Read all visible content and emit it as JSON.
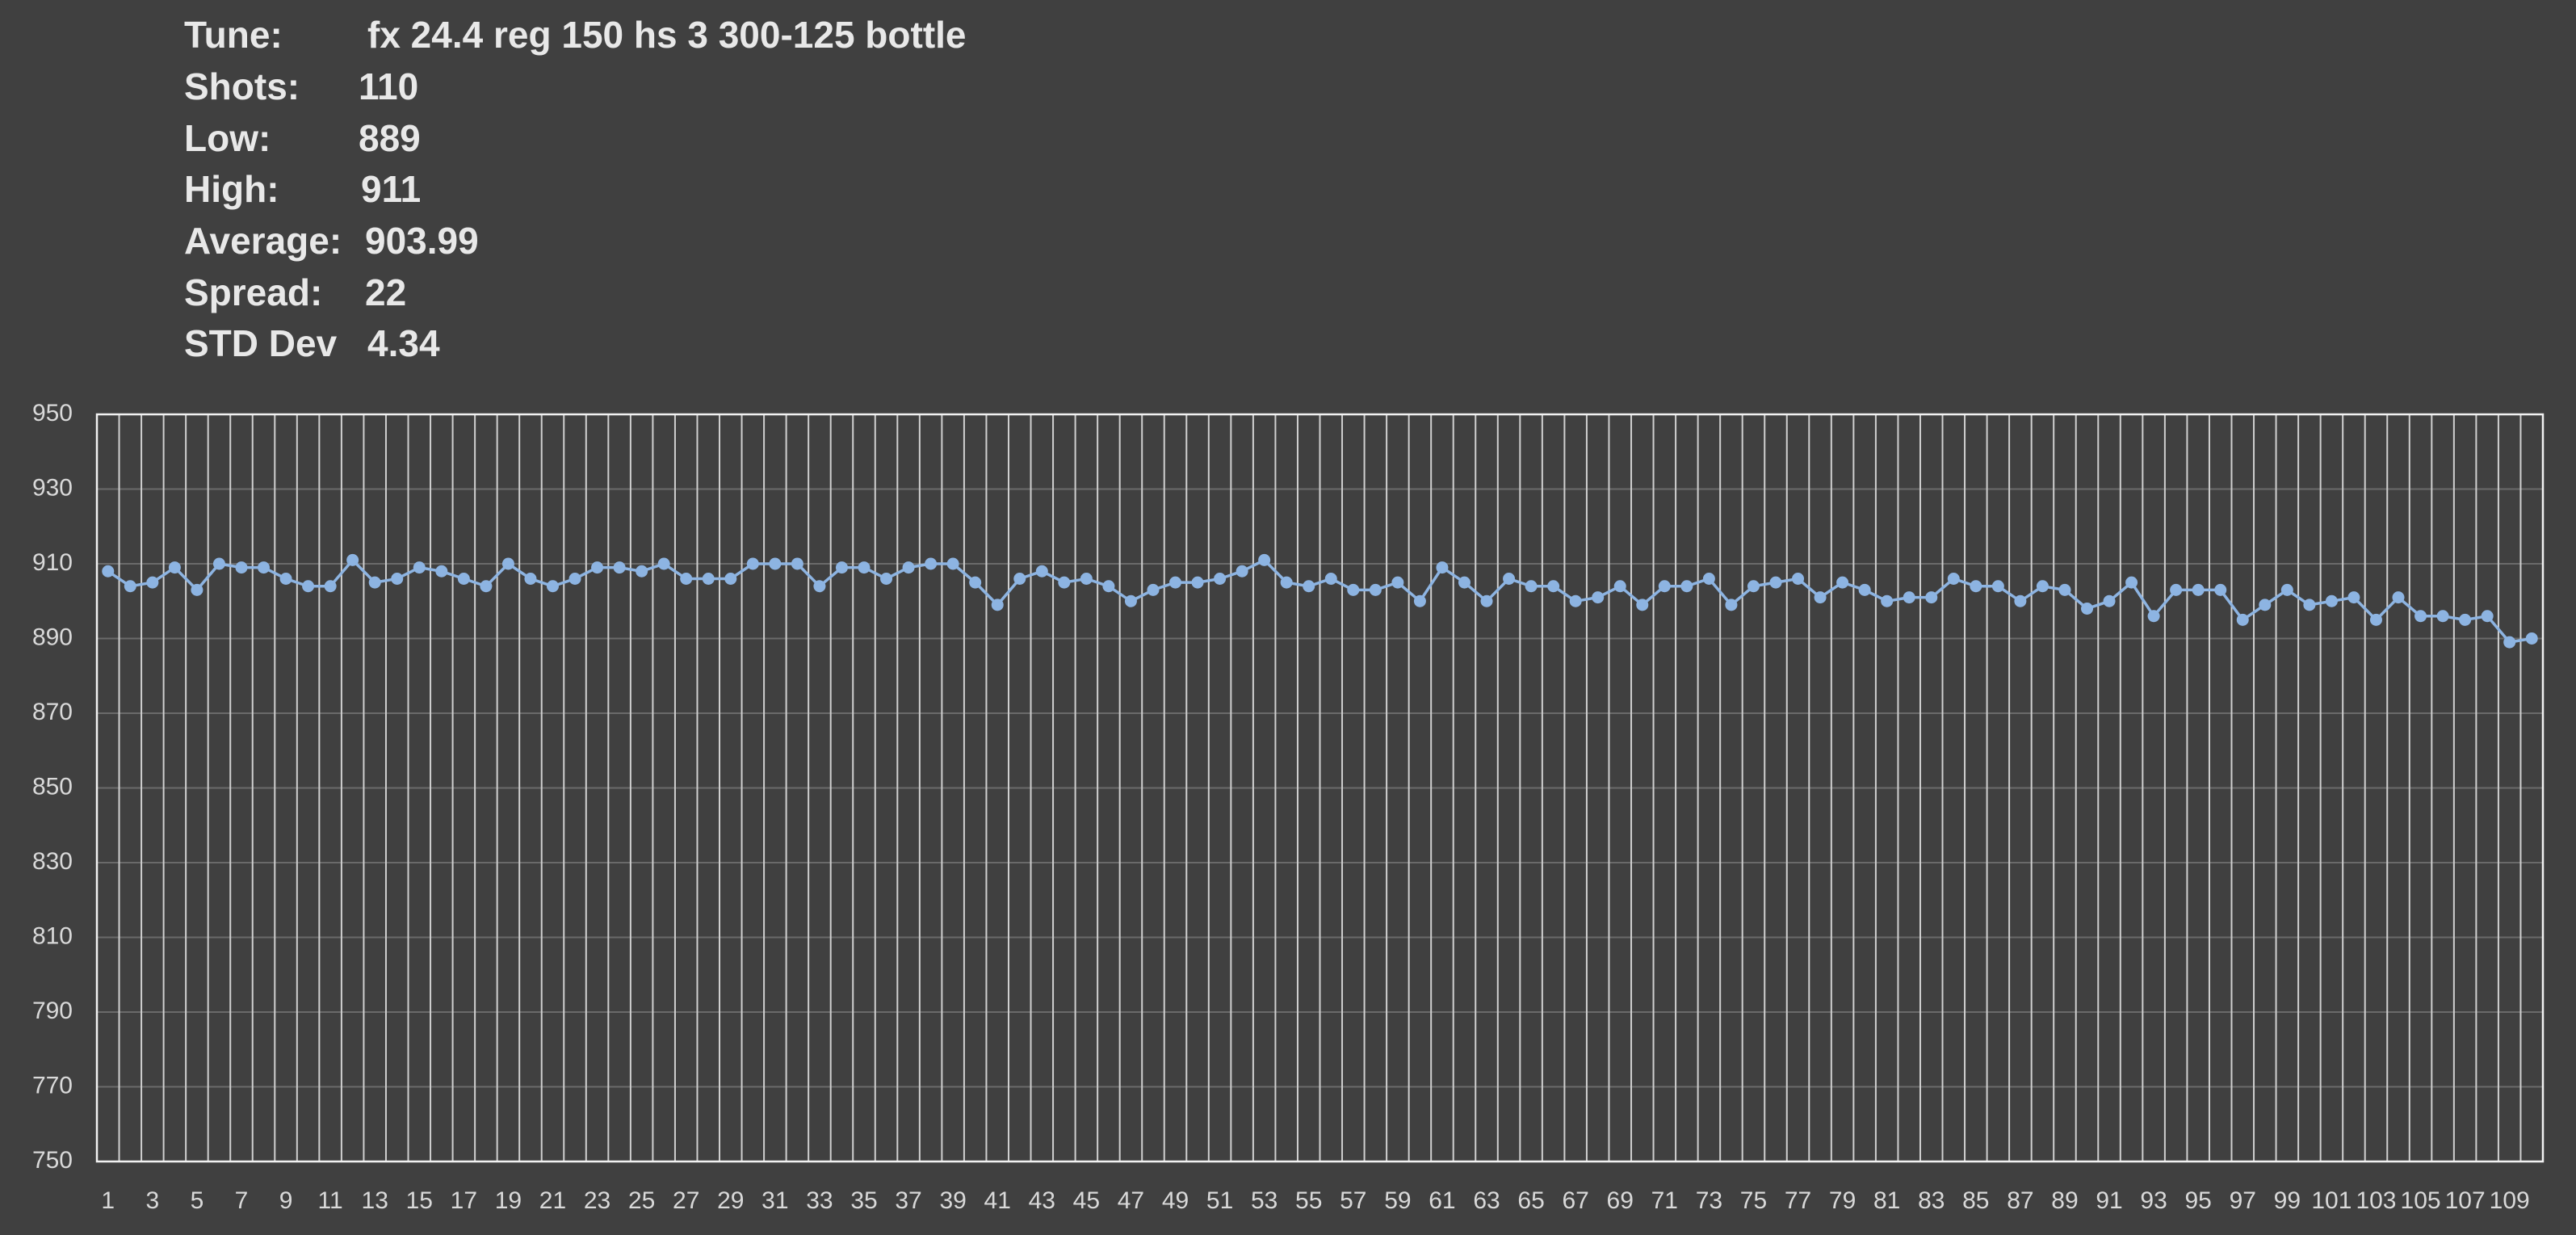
{
  "stats": [
    {
      "label": "Tune:",
      "value": "fx 24.4 reg 150 hs 3 300-125 bottle"
    },
    {
      "label": "Shots:",
      "value": "110"
    },
    {
      "label": "Low:",
      "value": "889"
    },
    {
      "label": "High:",
      "value": "911"
    },
    {
      "label": "Average:",
      "value": "903.99"
    },
    {
      "label": "Spread:",
      "value": "22"
    },
    {
      "label": "STD Dev",
      "value": "4.34"
    }
  ],
  "chart_data": {
    "type": "line",
    "color": "#8db4e2",
    "grid": true,
    "ylim": [
      750,
      950
    ],
    "yticks": [
      750,
      770,
      790,
      810,
      830,
      850,
      870,
      890,
      910,
      930,
      950
    ],
    "categories": [
      1,
      null,
      3,
      null,
      5,
      null,
      7,
      null,
      9,
      null,
      11,
      null,
      13,
      null,
      15,
      null,
      17,
      null,
      19,
      null,
      21,
      null,
      23,
      null,
      25,
      null,
      27,
      null,
      29,
      null,
      31,
      null,
      33,
      null,
      35,
      null,
      37,
      null,
      39,
      null,
      41,
      null,
      43,
      null,
      45,
      null,
      47,
      null,
      49,
      null,
      51,
      null,
      53,
      null,
      55,
      null,
      57,
      null,
      59,
      null,
      61,
      null,
      63,
      null,
      65,
      null,
      67,
      null,
      69,
      null,
      71,
      null,
      73,
      null,
      75,
      null,
      77,
      null,
      79,
      null,
      81,
      null,
      83,
      null,
      85,
      null,
      87,
      null,
      89,
      null,
      91,
      null,
      93,
      null,
      95,
      null,
      97,
      null,
      99,
      null,
      101,
      null,
      103,
      null,
      105,
      null,
      107,
      null,
      109,
      null
    ],
    "values": [
      908,
      904,
      905,
      909,
      903,
      910,
      909,
      909,
      906,
      904,
      904,
      911,
      905,
      906,
      909,
      908,
      906,
      904,
      910,
      906,
      904,
      906,
      909,
      909,
      908,
      910,
      906,
      906,
      906,
      910,
      910,
      910,
      904,
      909,
      909,
      906,
      909,
      910,
      910,
      905,
      899,
      906,
      908,
      905,
      906,
      904,
      900,
      903,
      905,
      905,
      906,
      908,
      911,
      905,
      904,
      906,
      903,
      903,
      905,
      900,
      909,
      905,
      900,
      906,
      904,
      904,
      900,
      901,
      904,
      899,
      904,
      904,
      906,
      899,
      904,
      905,
      906,
      901,
      905,
      903,
      900,
      901,
      901,
      906,
      904,
      904,
      900,
      904,
      903,
      898,
      900,
      905,
      896,
      903,
      903,
      903,
      895,
      899,
      903,
      899,
      900,
      901,
      895,
      901,
      896,
      896,
      895,
      896,
      889,
      890
    ]
  }
}
